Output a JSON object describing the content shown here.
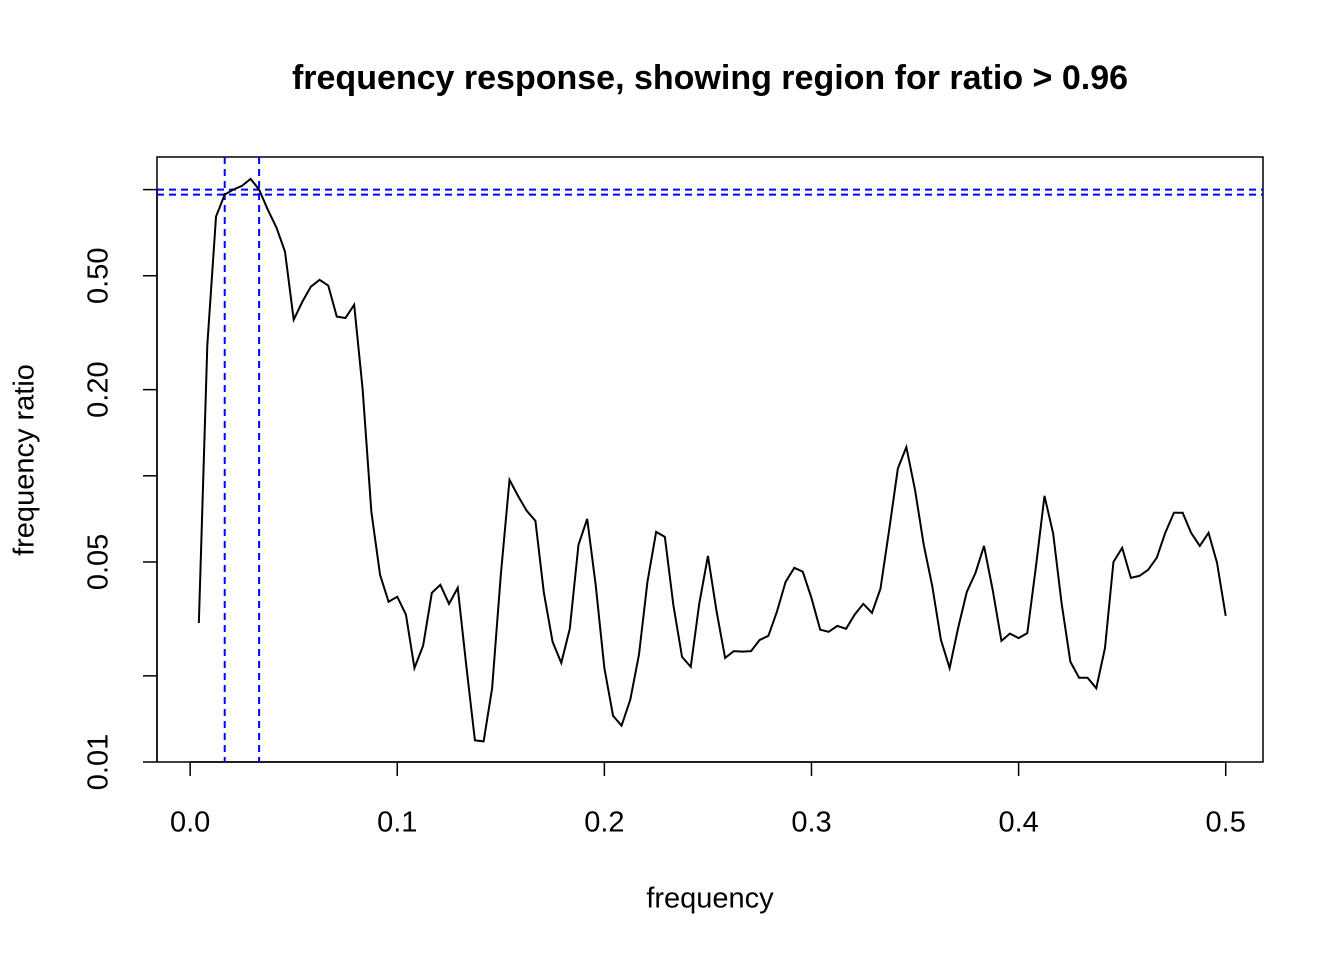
{
  "chart_data": {
    "type": "line",
    "title": "frequency response, showing region for ratio > 0.96",
    "x_label": "frequency",
    "y_label": "frequency ratio",
    "log_y": true,
    "color": "#000000",
    "ref_color": "#0000ff",
    "xlim": [
      -0.016,
      0.518
    ],
    "ylim": [
      0.01,
      1.3
    ],
    "xticks": [
      {
        "value": 0,
        "label": "0.0"
      },
      0.1,
      0.2,
      0.3,
      0.4,
      0.5
    ],
    "yticks": [
      0.01,
      0.05,
      {
        "value": 0.2,
        "label": "0.20"
      },
      {
        "value": 0.5,
        "label": "0.50"
      }
    ],
    "yticks_unlabeled": [
      0.02,
      0.1,
      1
    ],
    "hlines": [
      1.0,
      0.96
    ],
    "vlines": [
      0.0167,
      0.0333
    ],
    "x": [
      0.0042,
      0.0083,
      0.0125,
      0.0167,
      0.0208,
      0.025,
      0.0292,
      0.0333,
      0.0375,
      0.0417,
      0.0458,
      0.05,
      0.0542,
      0.0583,
      0.0625,
      0.0667,
      0.0708,
      0.075,
      0.0792,
      0.0833,
      0.0875,
      0.0917,
      0.0958,
      0.1,
      0.1042,
      0.1083,
      0.1125,
      0.1167,
      0.1208,
      0.125,
      0.1292,
      0.1333,
      0.1375,
      0.1417,
      0.1458,
      0.15,
      0.1542,
      0.1583,
      0.1625,
      0.1667,
      0.1708,
      0.175,
      0.1792,
      0.1833,
      0.1875,
      0.1917,
      0.1958,
      0.2,
      0.2042,
      0.2083,
      0.2125,
      0.2167,
      0.2208,
      0.225,
      0.2292,
      0.2333,
      0.2375,
      0.2417,
      0.2458,
      0.25,
      0.2542,
      0.2583,
      0.2625,
      0.2667,
      0.2708,
      0.275,
      0.2792,
      0.2833,
      0.2875,
      0.2917,
      0.2958,
      0.3,
      0.3042,
      0.3083,
      0.3125,
      0.3167,
      0.3208,
      0.325,
      0.3292,
      0.3333,
      0.3375,
      0.3417,
      0.3458,
      0.35,
      0.3542,
      0.3583,
      0.3625,
      0.3667,
      0.3708,
      0.375,
      0.3792,
      0.3833,
      0.3875,
      0.3917,
      0.3958,
      0.4,
      0.4042,
      0.4083,
      0.4125,
      0.4167,
      0.4208,
      0.425,
      0.4292,
      0.4333,
      0.4375,
      0.4417,
      0.4458,
      0.45,
      0.4542,
      0.4583,
      0.4625,
      0.4667,
      0.4708,
      0.475,
      0.4792,
      0.4833,
      0.4875,
      0.4917,
      0.4958,
      0.5
    ],
    "values": [
      0.0306,
      0.287,
      0.805,
      0.961,
      1.0,
      1.03,
      1.09,
      1.0,
      0.851,
      0.736,
      0.607,
      0.351,
      0.406,
      0.458,
      0.484,
      0.462,
      0.36,
      0.356,
      0.396,
      0.2,
      0.0748,
      0.0451,
      0.0363,
      0.0378,
      0.0327,
      0.0213,
      0.0255,
      0.039,
      0.0416,
      0.0357,
      0.0406,
      0.0218,
      0.0119,
      0.0118,
      0.0181,
      0.0451,
      0.0968,
      0.0851,
      0.0755,
      0.0696,
      0.039,
      0.0263,
      0.0222,
      0.0292,
      0.0574,
      0.0707,
      0.0416,
      0.0213,
      0.0145,
      0.0134,
      0.0165,
      0.0237,
      0.0426,
      0.0637,
      0.0612,
      0.0354,
      0.0233,
      0.0215,
      0.0357,
      0.0525,
      0.0335,
      0.0231,
      0.0244,
      0.0243,
      0.0244,
      0.0267,
      0.0276,
      0.0335,
      0.0426,
      0.0477,
      0.0462,
      0.0374,
      0.029,
      0.0285,
      0.0299,
      0.0292,
      0.0327,
      0.0357,
      0.0332,
      0.0403,
      0.0647,
      0.106,
      0.126,
      0.0893,
      0.0574,
      0.0412,
      0.0267,
      0.0213,
      0.0294,
      0.0393,
      0.0458,
      0.0569,
      0.0399,
      0.0265,
      0.0281,
      0.0271,
      0.0282,
      0.0477,
      0.0851,
      0.0627,
      0.0357,
      0.0224,
      0.0197,
      0.0197,
      0.0181,
      0.025,
      0.05,
      0.056,
      0.044,
      0.0447,
      0.0469,
      0.0517,
      0.0632,
      0.0743,
      0.0743,
      0.0632,
      0.0569,
      0.0632,
      0.0497,
      0.0324
    ]
  }
}
